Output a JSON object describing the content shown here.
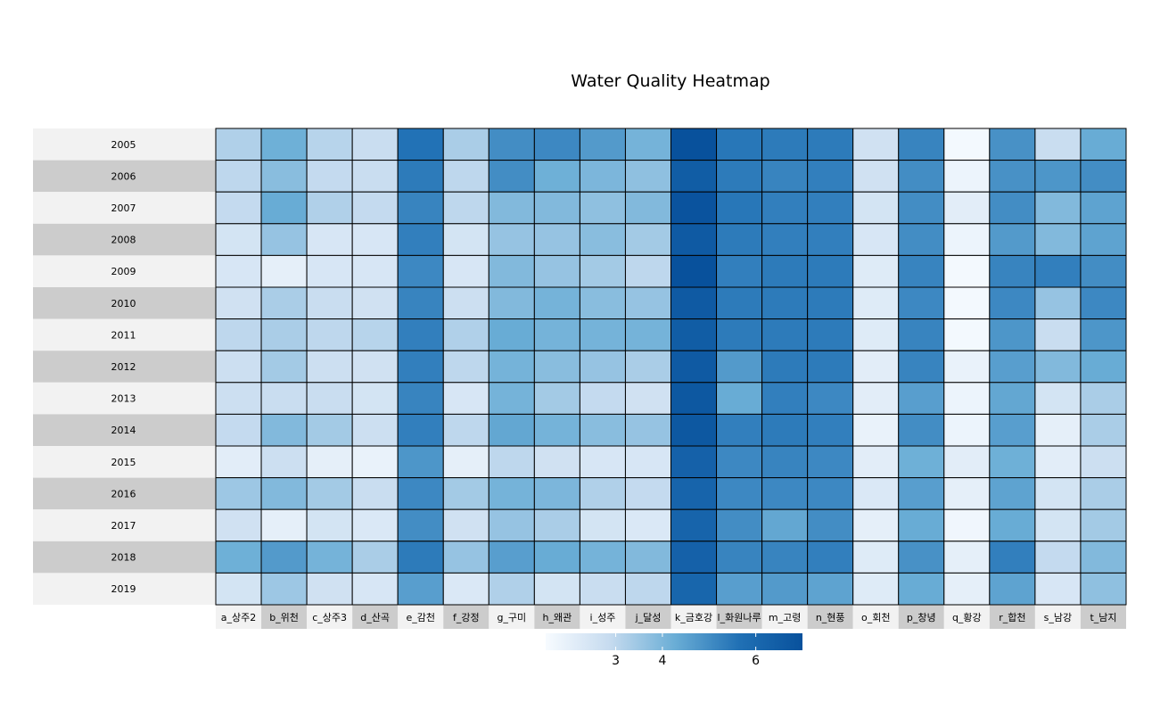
{
  "chart_data": {
    "type": "heatmap",
    "title": "Water Quality Heatmap",
    "rows": [
      "2005",
      "2006",
      "2007",
      "2008",
      "2009",
      "2010",
      "2011",
      "2012",
      "2013",
      "2014",
      "2015",
      "2016",
      "2017",
      "2018",
      "2019"
    ],
    "columns": [
      "a_상주2",
      "b_위천",
      "c_상주3",
      "d_산곡",
      "e_감천",
      "f_강정",
      "g_구미",
      "h_왜관",
      "i_성주",
      "j_달성",
      "k_금호강",
      "l_화원나루",
      "m_고령",
      "n_현풍",
      "o_회천",
      "p_창녕",
      "q_황강",
      "r_합천",
      "s_남강",
      "t_남지"
    ],
    "values": [
      [
        3.2,
        4.2,
        3.1,
        2.8,
        5.6,
        3.3,
        5.0,
        5.1,
        4.7,
        4.1,
        7.0,
        5.5,
        5.4,
        5.4,
        2.6,
        5.2,
        1.6,
        4.9,
        2.8,
        4.3
      ],
      [
        3.0,
        3.8,
        2.9,
        2.8,
        5.4,
        3.0,
        5.0,
        4.2,
        4.0,
        3.7,
        6.5,
        5.4,
        5.2,
        5.3,
        2.6,
        5.0,
        1.8,
        4.9,
        4.8,
        5.0
      ],
      [
        2.9,
        4.3,
        3.2,
        2.9,
        5.2,
        3.0,
        3.9,
        3.9,
        3.7,
        3.9,
        6.9,
        5.5,
        5.3,
        5.3,
        2.5,
        5.0,
        2.1,
        5.0,
        3.9,
        4.5
      ],
      [
        2.5,
        3.6,
        2.4,
        2.4,
        5.3,
        2.5,
        3.6,
        3.6,
        3.8,
        3.4,
        6.6,
        5.4,
        5.3,
        5.3,
        2.4,
        5.0,
        1.8,
        4.7,
        3.9,
        4.5
      ],
      [
        2.4,
        2.0,
        2.4,
        2.4,
        5.1,
        2.4,
        3.9,
        3.6,
        3.4,
        3.0,
        7.0,
        5.3,
        5.4,
        5.4,
        2.2,
        5.2,
        1.6,
        5.2,
        5.3,
        5.0
      ],
      [
        2.6,
        3.3,
        2.8,
        2.6,
        5.2,
        2.7,
        3.9,
        4.1,
        3.8,
        3.6,
        6.6,
        5.4,
        5.4,
        5.4,
        2.2,
        5.1,
        1.6,
        5.1,
        3.6,
        5.1
      ],
      [
        3.0,
        3.3,
        3.0,
        3.1,
        5.3,
        3.2,
        4.3,
        4.1,
        4.1,
        4.1,
        6.5,
        5.4,
        5.4,
        5.4,
        2.2,
        5.2,
        1.6,
        4.8,
        2.8,
        4.8
      ],
      [
        2.7,
        3.4,
        2.7,
        2.6,
        5.3,
        3.0,
        4.1,
        3.8,
        3.6,
        3.3,
        6.6,
        4.7,
        5.4,
        5.4,
        2.1,
        5.2,
        1.9,
        4.6,
        3.9,
        4.3
      ],
      [
        2.7,
        2.8,
        2.8,
        2.5,
        5.2,
        2.4,
        4.1,
        3.4,
        2.9,
        2.6,
        6.7,
        4.3,
        5.3,
        5.1,
        2.1,
        4.6,
        1.8,
        4.4,
        2.5,
        3.3
      ],
      [
        2.9,
        3.9,
        3.4,
        2.7,
        5.3,
        3.0,
        4.4,
        4.1,
        3.8,
        3.6,
        6.7,
        5.3,
        5.4,
        5.3,
        1.9,
        5.0,
        1.8,
        4.6,
        2.0,
        3.3
      ],
      [
        2.1,
        2.7,
        2.0,
        1.9,
        4.8,
        2.0,
        3.0,
        2.6,
        2.4,
        2.4,
        6.3,
        5.1,
        5.2,
        5.1,
        2.1,
        4.2,
        2.1,
        4.2,
        2.1,
        2.7
      ],
      [
        3.5,
        3.9,
        3.4,
        2.8,
        5.1,
        3.4,
        4.1,
        4.0,
        3.2,
        2.9,
        6.2,
        5.1,
        5.1,
        5.1,
        2.3,
        4.6,
        2.0,
        4.5,
        2.5,
        3.3
      ],
      [
        2.6,
        2.0,
        2.5,
        2.3,
        5.0,
        2.6,
        3.6,
        3.3,
        2.5,
        2.3,
        6.2,
        5.0,
        4.4,
        5.0,
        2.0,
        4.3,
        1.7,
        4.3,
        2.5,
        3.4
      ],
      [
        4.2,
        4.7,
        4.1,
        3.3,
        5.4,
        3.6,
        4.6,
        4.3,
        4.1,
        3.9,
        6.3,
        5.2,
        5.2,
        5.3,
        2.2,
        4.9,
        2.0,
        5.3,
        2.9,
        3.9
      ],
      [
        2.5,
        3.5,
        2.6,
        2.4,
        4.6,
        2.3,
        3.2,
        2.5,
        2.8,
        3.0,
        6.1,
        4.6,
        4.7,
        4.5,
        2.2,
        4.3,
        2.0,
        4.5,
        2.4,
        3.7
      ]
    ],
    "legend": {
      "ticks": [
        3,
        4,
        6
      ],
      "range": [
        1.5,
        7.0
      ],
      "colors": [
        "#f7fbff",
        "#c6dbef",
        "#6baed6",
        "#2171b5",
        "#08519c"
      ]
    },
    "row_band_colors": [
      "#f2f2f2",
      "#cccccc"
    ],
    "xlabel": "",
    "ylabel": ""
  }
}
